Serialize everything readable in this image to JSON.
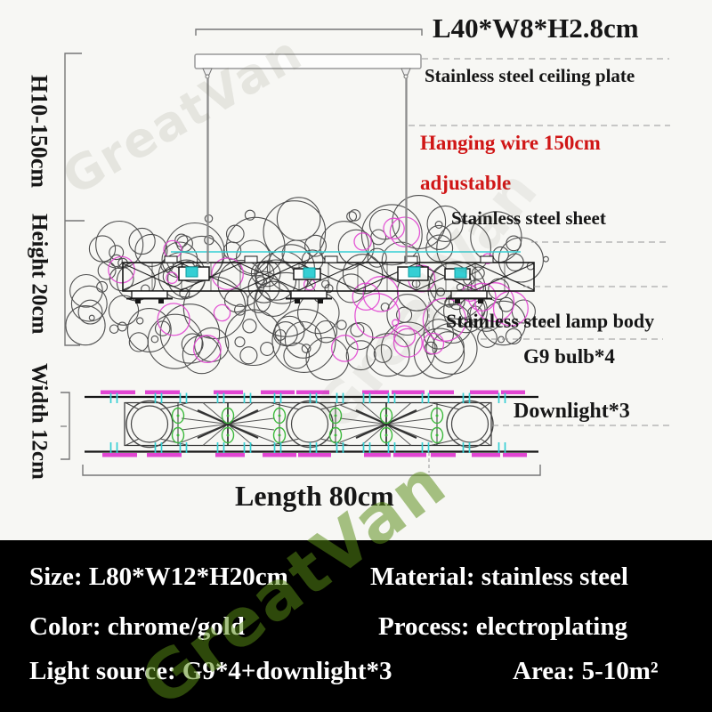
{
  "product_diagram": {
    "watermark_text": "GreatVan",
    "canopy_dimension": "L40*W8*H2.8cm",
    "labels": {
      "ceiling_plate": "Stainless steel ceiling plate",
      "hanging_wire_line1": "Hanging wire 150cm",
      "hanging_wire_line2": "adjustable",
      "steel_sheet": "Stainless steel sheet",
      "lamp_body": "Stainless steel lamp body",
      "g9_bulb": "G9 bulb*4",
      "downlight": "Downlight*3"
    },
    "dimensions": {
      "hanging_height": "H10-150cm",
      "body_height": "Height 20cm",
      "body_width": "Width 12cm",
      "body_length": "Length 80cm"
    },
    "colors": {
      "accent_red": "#d01616",
      "magenta": "#e145d2",
      "cyan": "#35cfd4",
      "green": "#3cb93c",
      "bubble_gray": "#4f4f4f",
      "leader_gray": "#979797",
      "dim_gray": "#777777",
      "wire_gray": "#8c8c8c",
      "cad_black": "#161616",
      "panel_black": "#000000",
      "panel_text": "#ffffff"
    }
  },
  "spec_panel": {
    "rows": [
      {
        "left": "Size: L80*W12*H20cm",
        "right": "Material: stainless steel"
      },
      {
        "left": "Color: chrome/gold",
        "right": "Process: electroplating"
      },
      {
        "left": "Light source: G9*4+downlight*3",
        "right": "Area: 5-10m²"
      }
    ]
  }
}
